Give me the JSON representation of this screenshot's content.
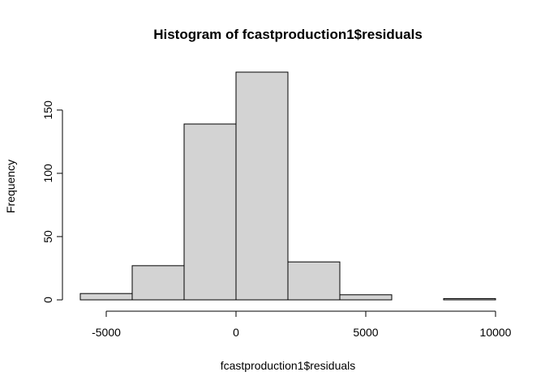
{
  "chart_data": {
    "type": "bar",
    "title": "Histogram of fcastproduction1$residuals",
    "xlabel": "fcastproduction1$residuals",
    "ylabel": "Frequency",
    "xlim": [
      -6000,
      10000
    ],
    "ylim": [
      0,
      180
    ],
    "bins": [
      {
        "from": -6000,
        "to": -4000,
        "count": 5
      },
      {
        "from": -4000,
        "to": -2000,
        "count": 27
      },
      {
        "from": -2000,
        "to": 0,
        "count": 139
      },
      {
        "from": 0,
        "to": 2000,
        "count": 180
      },
      {
        "from": 2000,
        "to": 4000,
        "count": 30
      },
      {
        "from": 4000,
        "to": 6000,
        "count": 4
      },
      {
        "from": 6000,
        "to": 8000,
        "count": 0
      },
      {
        "from": 8000,
        "to": 10000,
        "count": 1
      }
    ],
    "x_ticks": [
      -5000,
      0,
      5000,
      10000
    ],
    "x_tick_labels": [
      "-5000",
      "0",
      "5000",
      "10000"
    ],
    "y_ticks": [
      0,
      50,
      100,
      150
    ],
    "y_tick_labels": [
      "0",
      "50",
      "100",
      "150"
    ],
    "bar_color": "#d3d3d3",
    "border_color": "#000000",
    "grid": false
  }
}
